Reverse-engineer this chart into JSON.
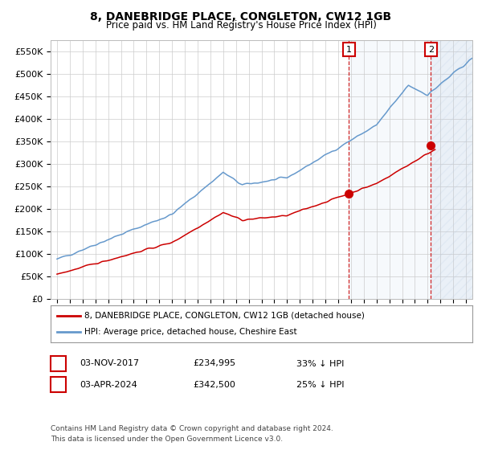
{
  "title": "8, DANEBRIDGE PLACE, CONGLETON, CW12 1GB",
  "subtitle": "Price paid vs. HM Land Registry's House Price Index (HPI)",
  "ylim": [
    0,
    575000
  ],
  "yticks": [
    0,
    50000,
    100000,
    150000,
    200000,
    250000,
    300000,
    350000,
    400000,
    450000,
    500000,
    550000
  ],
  "ytick_labels": [
    "£0",
    "£50K",
    "£100K",
    "£150K",
    "£200K",
    "£250K",
    "£300K",
    "£350K",
    "£400K",
    "£450K",
    "£500K",
    "£550K"
  ],
  "hpi_color": "#6699cc",
  "price_color": "#cc0000",
  "sale1_date": 2017.84,
  "sale1_price": 234995,
  "sale2_date": 2024.25,
  "sale2_price": 342500,
  "legend_label_price": "8, DANEBRIDGE PLACE, CONGLETON, CW12 1GB (detached house)",
  "legend_label_hpi": "HPI: Average price, detached house, Cheshire East",
  "annotation1_date": "03-NOV-2017",
  "annotation1_price": "£234,995",
  "annotation1_hpi": "33% ↓ HPI",
  "annotation2_date": "03-APR-2024",
  "annotation2_price": "£342,500",
  "annotation2_hpi": "25% ↓ HPI",
  "footnote": "Contains HM Land Registry data © Crown copyright and database right 2024.\nThis data is licensed under the Open Government Licence v3.0.",
  "background_color": "#ffffff",
  "shade_color": "#dde8f5",
  "hatch_color": "#b8cce4",
  "grid_color": "#cccccc",
  "xmin": 1994.5,
  "xmax": 2027.5
}
